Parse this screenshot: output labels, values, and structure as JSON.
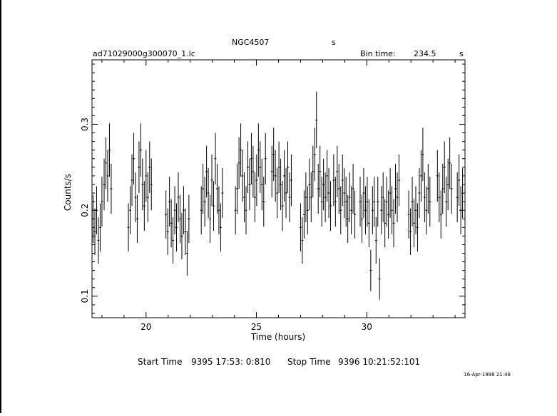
{
  "header": {
    "object": "NGC4507",
    "unit_top": "s",
    "file": "ad71029000g300070_1.lc",
    "bin_label": "Bin time:",
    "bin_value": "234.5",
    "bin_unit": "s"
  },
  "footer": {
    "start_label": "Start Time",
    "start_value": "9395 17:53: 0:810",
    "stop_label": "Stop Time",
    "stop_value": "9396 10:21:52:101",
    "stamp": "16-Apr-1998 21:48"
  },
  "chart_data": {
    "type": "scatter",
    "xlabel": "Time (hours)",
    "ylabel": "Counts/s",
    "xlim": [
      17.55,
      34.45
    ],
    "ylim": [
      0.075,
      0.375
    ],
    "x_ticks": [
      20,
      25,
      30
    ],
    "y_ticks": [
      0.1,
      0.2,
      0.3
    ],
    "x_tick_labels": [
      "20",
      "25",
      "30"
    ],
    "y_tick_labels": [
      "0.1",
      "0.2",
      "0.3"
    ],
    "grid": false,
    "error_bars": true,
    "points": [
      [
        17.6,
        0.19,
        0.028
      ],
      [
        17.68,
        0.175,
        0.027
      ],
      [
        17.76,
        0.2,
        0.028
      ],
      [
        17.84,
        0.165,
        0.027
      ],
      [
        17.92,
        0.18,
        0.028
      ],
      [
        18.0,
        0.21,
        0.029
      ],
      [
        18.1,
        0.23,
        0.03
      ],
      [
        18.18,
        0.255,
        0.03
      ],
      [
        18.26,
        0.24,
        0.03
      ],
      [
        18.34,
        0.27,
        0.031
      ],
      [
        18.42,
        0.225,
        0.029
      ],
      [
        19.2,
        0.18,
        0.028
      ],
      [
        19.28,
        0.2,
        0.028
      ],
      [
        19.36,
        0.235,
        0.03
      ],
      [
        19.44,
        0.26,
        0.03
      ],
      [
        19.52,
        0.215,
        0.029
      ],
      [
        19.6,
        0.19,
        0.028
      ],
      [
        19.68,
        0.25,
        0.03
      ],
      [
        19.76,
        0.27,
        0.031
      ],
      [
        19.84,
        0.23,
        0.03
      ],
      [
        19.92,
        0.205,
        0.029
      ],
      [
        20.0,
        0.24,
        0.03
      ],
      [
        20.08,
        0.215,
        0.029
      ],
      [
        20.16,
        0.25,
        0.03
      ],
      [
        20.24,
        0.23,
        0.03
      ],
      [
        20.9,
        0.195,
        0.028
      ],
      [
        20.98,
        0.175,
        0.027
      ],
      [
        21.06,
        0.21,
        0.029
      ],
      [
        21.14,
        0.185,
        0.028
      ],
      [
        21.22,
        0.165,
        0.027
      ],
      [
        21.3,
        0.2,
        0.028
      ],
      [
        21.38,
        0.18,
        0.028
      ],
      [
        21.46,
        0.215,
        0.029
      ],
      [
        21.54,
        0.19,
        0.028
      ],
      [
        21.62,
        0.17,
        0.027
      ],
      [
        21.7,
        0.2,
        0.028
      ],
      [
        21.78,
        0.175,
        0.027
      ],
      [
        21.86,
        0.15,
        0.026
      ],
      [
        21.94,
        0.19,
        0.028
      ],
      [
        22.5,
        0.2,
        0.028
      ],
      [
        22.58,
        0.225,
        0.029
      ],
      [
        22.66,
        0.21,
        0.029
      ],
      [
        22.74,
        0.245,
        0.03
      ],
      [
        22.82,
        0.22,
        0.029
      ],
      [
        22.9,
        0.19,
        0.028
      ],
      [
        22.98,
        0.235,
        0.03
      ],
      [
        23.06,
        0.205,
        0.029
      ],
      [
        23.14,
        0.26,
        0.03
      ],
      [
        23.22,
        0.225,
        0.029
      ],
      [
        23.3,
        0.2,
        0.028
      ],
      [
        23.38,
        0.18,
        0.028
      ],
      [
        23.46,
        0.22,
        0.029
      ],
      [
        24.05,
        0.2,
        0.028
      ],
      [
        24.13,
        0.225,
        0.029
      ],
      [
        24.21,
        0.255,
        0.03
      ],
      [
        24.29,
        0.27,
        0.031
      ],
      [
        24.37,
        0.24,
        0.03
      ],
      [
        24.45,
        0.215,
        0.029
      ],
      [
        24.53,
        0.2,
        0.028
      ],
      [
        24.61,
        0.25,
        0.03
      ],
      [
        24.69,
        0.23,
        0.03
      ],
      [
        24.77,
        0.26,
        0.03
      ],
      [
        24.85,
        0.245,
        0.03
      ],
      [
        24.93,
        0.215,
        0.029
      ],
      [
        25.01,
        0.235,
        0.03
      ],
      [
        25.09,
        0.27,
        0.031
      ],
      [
        25.17,
        0.25,
        0.03
      ],
      [
        25.25,
        0.23,
        0.03
      ],
      [
        25.33,
        0.21,
        0.029
      ],
      [
        25.41,
        0.26,
        0.03
      ],
      [
        25.7,
        0.245,
        0.03
      ],
      [
        25.78,
        0.265,
        0.031
      ],
      [
        25.86,
        0.24,
        0.03
      ],
      [
        25.94,
        0.22,
        0.029
      ],
      [
        26.02,
        0.25,
        0.03
      ],
      [
        26.1,
        0.23,
        0.03
      ],
      [
        26.18,
        0.205,
        0.029
      ],
      [
        26.26,
        0.24,
        0.03
      ],
      [
        26.34,
        0.22,
        0.029
      ],
      [
        26.42,
        0.25,
        0.03
      ],
      [
        26.5,
        0.215,
        0.029
      ],
      [
        26.58,
        0.235,
        0.03
      ],
      [
        27.0,
        0.18,
        0.028
      ],
      [
        27.08,
        0.165,
        0.027
      ],
      [
        27.16,
        0.195,
        0.028
      ],
      [
        27.24,
        0.215,
        0.029
      ],
      [
        27.32,
        0.2,
        0.028
      ],
      [
        27.4,
        0.23,
        0.03
      ],
      [
        27.48,
        0.215,
        0.029
      ],
      [
        27.56,
        0.245,
        0.03
      ],
      [
        27.64,
        0.265,
        0.031
      ],
      [
        27.72,
        0.305,
        0.033
      ],
      [
        27.8,
        0.225,
        0.029
      ],
      [
        27.88,
        0.245,
        0.03
      ],
      [
        27.96,
        0.21,
        0.029
      ],
      [
        28.04,
        0.23,
        0.03
      ],
      [
        28.12,
        0.215,
        0.029
      ],
      [
        28.2,
        0.24,
        0.03
      ],
      [
        28.28,
        0.22,
        0.029
      ],
      [
        28.36,
        0.205,
        0.029
      ],
      [
        28.5,
        0.235,
        0.03
      ],
      [
        28.58,
        0.21,
        0.029
      ],
      [
        28.66,
        0.245,
        0.03
      ],
      [
        28.74,
        0.225,
        0.029
      ],
      [
        28.82,
        0.2,
        0.028
      ],
      [
        28.9,
        0.235,
        0.03
      ],
      [
        28.98,
        0.22,
        0.029
      ],
      [
        29.06,
        0.21,
        0.029
      ],
      [
        29.14,
        0.19,
        0.028
      ],
      [
        29.22,
        0.215,
        0.029
      ],
      [
        29.3,
        0.2,
        0.028
      ],
      [
        29.38,
        0.225,
        0.029
      ],
      [
        29.46,
        0.195,
        0.028
      ],
      [
        29.7,
        0.21,
        0.029
      ],
      [
        29.78,
        0.19,
        0.028
      ],
      [
        29.86,
        0.22,
        0.029
      ],
      [
        29.94,
        0.2,
        0.028
      ],
      [
        30.02,
        0.21,
        0.029
      ],
      [
        30.1,
        0.185,
        0.028
      ],
      [
        30.18,
        0.13,
        0.024
      ],
      [
        30.26,
        0.2,
        0.028
      ],
      [
        30.34,
        0.21,
        0.029
      ],
      [
        30.42,
        0.165,
        0.027
      ],
      [
        30.5,
        0.21,
        0.029
      ],
      [
        30.58,
        0.12,
        0.024
      ],
      [
        30.66,
        0.2,
        0.028
      ],
      [
        30.74,
        0.215,
        0.029
      ],
      [
        30.82,
        0.185,
        0.028
      ],
      [
        30.9,
        0.21,
        0.029
      ],
      [
        30.98,
        0.195,
        0.028
      ],
      [
        31.06,
        0.22,
        0.029
      ],
      [
        31.14,
        0.2,
        0.028
      ],
      [
        31.22,
        0.185,
        0.028
      ],
      [
        31.3,
        0.225,
        0.029
      ],
      [
        31.38,
        0.215,
        0.029
      ],
      [
        31.46,
        0.235,
        0.03
      ],
      [
        31.9,
        0.195,
        0.028
      ],
      [
        31.98,
        0.175,
        0.027
      ],
      [
        32.06,
        0.21,
        0.029
      ],
      [
        32.14,
        0.185,
        0.028
      ],
      [
        32.22,
        0.2,
        0.028
      ],
      [
        32.3,
        0.18,
        0.028
      ],
      [
        32.38,
        0.22,
        0.029
      ],
      [
        32.46,
        0.24,
        0.03
      ],
      [
        32.54,
        0.265,
        0.031
      ],
      [
        32.62,
        0.215,
        0.029
      ],
      [
        32.7,
        0.2,
        0.028
      ],
      [
        32.78,
        0.225,
        0.029
      ],
      [
        32.86,
        0.21,
        0.029
      ],
      [
        33.2,
        0.24,
        0.03
      ],
      [
        33.28,
        0.215,
        0.029
      ],
      [
        33.36,
        0.195,
        0.028
      ],
      [
        33.44,
        0.225,
        0.029
      ],
      [
        33.52,
        0.25,
        0.03
      ],
      [
        33.6,
        0.21,
        0.029
      ],
      [
        33.68,
        0.23,
        0.03
      ],
      [
        33.76,
        0.255,
        0.03
      ],
      [
        33.84,
        0.225,
        0.029
      ],
      [
        34.1,
        0.215,
        0.029
      ],
      [
        34.18,
        0.235,
        0.03
      ],
      [
        34.26,
        0.2,
        0.028
      ],
      [
        34.34,
        0.22,
        0.029
      ]
    ]
  }
}
